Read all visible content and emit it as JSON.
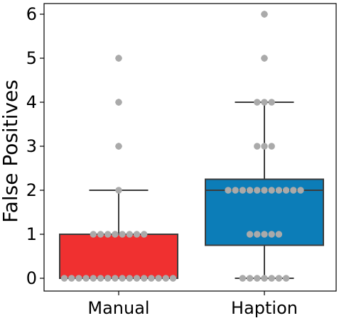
{
  "chart_data": {
    "type": "box",
    "xlabel": "",
    "ylabel": "False Positives",
    "ylim": [
      -0.25,
      6.2
    ],
    "yticks": [
      0,
      1,
      2,
      3,
      4,
      5,
      6
    ],
    "grid": false,
    "groups": [
      {
        "category": "Manual",
        "color": "#F03030",
        "box": {
          "whisker_low": 0,
          "q1": 0,
          "median": 0,
          "q3": 1,
          "whisker_high": 2
        },
        "outliers": [
          3,
          4,
          5
        ],
        "points": [
          0,
          0,
          0,
          0,
          0,
          0,
          0,
          0,
          0,
          0,
          0,
          0,
          0,
          0,
          0,
          0,
          0,
          0,
          0,
          0,
          0,
          0,
          0,
          0,
          0,
          0,
          0,
          0,
          0,
          0,
          0,
          0,
          0,
          0,
          0,
          0,
          0,
          0,
          0,
          0,
          0,
          0,
          0,
          0,
          0,
          0,
          0,
          0,
          0,
          0,
          0,
          0,
          0,
          0,
          0,
          0,
          0,
          0,
          0,
          0,
          0,
          0,
          0,
          0,
          0,
          0,
          0,
          0,
          0,
          0,
          0,
          0,
          0,
          0,
          0,
          0,
          0,
          0,
          0,
          0,
          0,
          0,
          0,
          0,
          0,
          0,
          0,
          0,
          0,
          0,
          0,
          0,
          0,
          0,
          0,
          0,
          1,
          1,
          1,
          1,
          1,
          1,
          1,
          1,
          1,
          1,
          1,
          1,
          1,
          1,
          1,
          1,
          1,
          1,
          1,
          1,
          1,
          1,
          1,
          1,
          1,
          1,
          1,
          1,
          2,
          3,
          4,
          5
        ]
      },
      {
        "category": "Haption",
        "color": "#0C7DB8",
        "box": {
          "whisker_low": 0,
          "q1": 0.75,
          "median": 2,
          "q3": 2.25,
          "whisker_high": 4
        },
        "outliers": [
          5,
          6
        ],
        "points": [
          0,
          0,
          0,
          0,
          0,
          0,
          0,
          0,
          0,
          0,
          0,
          0,
          0,
          0,
          0,
          0,
          0,
          0,
          0,
          0,
          0,
          0,
          0,
          0,
          0,
          0,
          0,
          0,
          0,
          0,
          0,
          0,
          0,
          0,
          0,
          0,
          0,
          0,
          0,
          0,
          0,
          0,
          0,
          0,
          0,
          0,
          0,
          0,
          0,
          0,
          0,
          0,
          0,
          0,
          1,
          1,
          1,
          1,
          1,
          1,
          1,
          1,
          1,
          1,
          1,
          1,
          1,
          1,
          1,
          1,
          1,
          1,
          1,
          1,
          1,
          1,
          1,
          1,
          1,
          2,
          2,
          2,
          2,
          2,
          2,
          2,
          2,
          2,
          2,
          2,
          2,
          2,
          2,
          2,
          2,
          2,
          2,
          2,
          2,
          2,
          2,
          2,
          2,
          2,
          2,
          2,
          2,
          2,
          2,
          2,
          2,
          2,
          2,
          2,
          2,
          2,
          2,
          2,
          2,
          2,
          2,
          2,
          2,
          2,
          2,
          2,
          2,
          2,
          2,
          2,
          2,
          2,
          2,
          2,
          2,
          2,
          2,
          2,
          2,
          2,
          2,
          2,
          2,
          2,
          3,
          3,
          3,
          3,
          3,
          4,
          4,
          4,
          4,
          5,
          6
        ]
      }
    ],
    "point_color": "#AAAAAA",
    "line_color": "#3C3C3C"
  }
}
